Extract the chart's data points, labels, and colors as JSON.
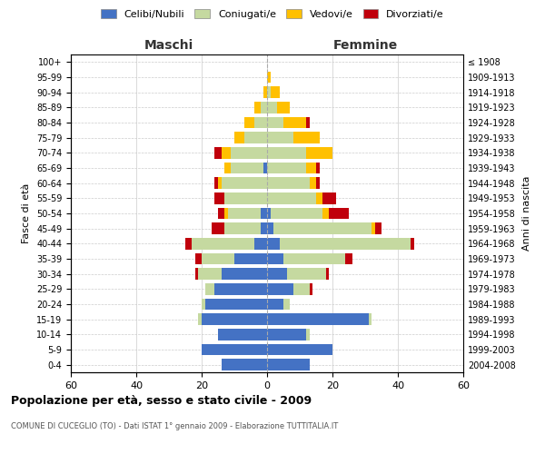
{
  "age_groups": [
    "0-4",
    "5-9",
    "10-14",
    "15-19",
    "20-24",
    "25-29",
    "30-34",
    "35-39",
    "40-44",
    "45-49",
    "50-54",
    "55-59",
    "60-64",
    "65-69",
    "70-74",
    "75-79",
    "80-84",
    "85-89",
    "90-94",
    "95-99",
    "100+"
  ],
  "birth_years": [
    "2004-2008",
    "1999-2003",
    "1994-1998",
    "1989-1993",
    "1984-1988",
    "1979-1983",
    "1974-1978",
    "1969-1973",
    "1964-1968",
    "1959-1963",
    "1954-1958",
    "1949-1953",
    "1944-1948",
    "1939-1943",
    "1934-1938",
    "1929-1933",
    "1924-1928",
    "1919-1923",
    "1914-1918",
    "1909-1913",
    "≤ 1908"
  ],
  "maschi": {
    "celibi": [
      14,
      20,
      15,
      20,
      19,
      16,
      14,
      10,
      4,
      2,
      2,
      0,
      0,
      1,
      0,
      0,
      0,
      0,
      0,
      0,
      0
    ],
    "coniugati": [
      0,
      0,
      0,
      1,
      1,
      3,
      7,
      10,
      19,
      11,
      10,
      13,
      14,
      10,
      11,
      7,
      4,
      2,
      0,
      0,
      0
    ],
    "vedovi": [
      0,
      0,
      0,
      0,
      0,
      0,
      0,
      0,
      0,
      0,
      1,
      0,
      1,
      2,
      3,
      3,
      3,
      2,
      1,
      0,
      0
    ],
    "divorziati": [
      0,
      0,
      0,
      0,
      0,
      0,
      1,
      2,
      2,
      4,
      2,
      3,
      1,
      0,
      2,
      0,
      0,
      0,
      0,
      0,
      0
    ]
  },
  "femmine": {
    "nubili": [
      13,
      20,
      12,
      31,
      5,
      8,
      6,
      5,
      4,
      2,
      1,
      0,
      0,
      0,
      0,
      0,
      0,
      0,
      0,
      0,
      0
    ],
    "coniugate": [
      0,
      0,
      1,
      1,
      2,
      5,
      12,
      19,
      40,
      30,
      16,
      15,
      13,
      12,
      12,
      8,
      5,
      3,
      1,
      0,
      0
    ],
    "vedove": [
      0,
      0,
      0,
      0,
      0,
      0,
      0,
      0,
      0,
      1,
      2,
      2,
      2,
      3,
      8,
      8,
      7,
      4,
      3,
      1,
      0
    ],
    "divorziate": [
      0,
      0,
      0,
      0,
      0,
      1,
      1,
      2,
      1,
      2,
      6,
      4,
      1,
      1,
      0,
      0,
      1,
      0,
      0,
      0,
      0
    ]
  },
  "colors": {
    "celibi": "#4472c4",
    "coniugati": "#c5d9a0",
    "vedovi": "#ffc000",
    "divorziati": "#c0000c"
  },
  "title": "Popolazione per età, sesso e stato civile - 2009",
  "subtitle": "COMUNE DI CUCEGLIO (TO) - Dati ISTAT 1° gennaio 2009 - Elaborazione TUTTITALIA.IT",
  "xlabel_left": "Maschi",
  "xlabel_right": "Femmine",
  "ylabel_left": "Fasce di età",
  "ylabel_right": "Anni di nascita",
  "xlim": 60,
  "legend_labels": [
    "Celibi/Nubili",
    "Coniugati/e",
    "Vedovi/e",
    "Divorziati/e"
  ],
  "background_color": "#ffffff",
  "grid_color": "#cccccc"
}
